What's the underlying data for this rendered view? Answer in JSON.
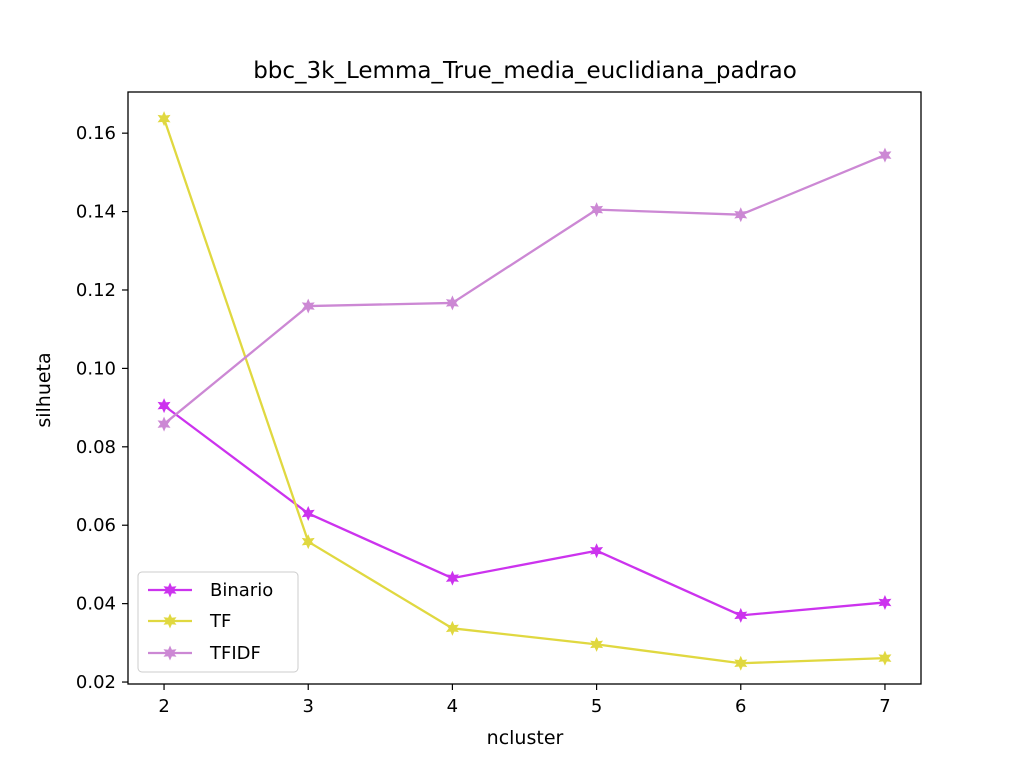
{
  "chart_data": {
    "type": "line",
    "title": "bbc_3k_Lemma_True_media_euclidiana_padrao",
    "xlabel": "ncluster",
    "ylabel": "silhueta",
    "x": [
      2,
      3,
      4,
      5,
      6,
      7
    ],
    "xlim": [
      1.75,
      7.25
    ],
    "ylim": [
      0.0195,
      0.1705
    ],
    "yticks": [
      0.02,
      0.04,
      0.06,
      0.08,
      0.1,
      0.12,
      0.14,
      0.16
    ],
    "ytick_labels": [
      "0.02",
      "0.04",
      "0.06",
      "0.08",
      "0.10",
      "0.12",
      "0.14",
      "0.16"
    ],
    "xticks": [
      2,
      3,
      4,
      5,
      6,
      7
    ],
    "xtick_labels": [
      "2",
      "3",
      "4",
      "5",
      "6",
      "7"
    ],
    "grid": false,
    "legend_position": "lower-left",
    "marker": "star",
    "series": [
      {
        "name": "Binario",
        "color": "#cc33ee",
        "values": [
          0.0905,
          0.063,
          0.0465,
          0.0535,
          0.037,
          0.0403
        ]
      },
      {
        "name": "TF",
        "color": "#e0d840",
        "values": [
          0.1637,
          0.0558,
          0.0337,
          0.0296,
          0.0248,
          0.0261
        ]
      },
      {
        "name": "TFIDF",
        "color": "#cc88d4",
        "values": [
          0.0858,
          0.1159,
          0.1167,
          0.1405,
          0.1392,
          0.1544
        ]
      }
    ]
  }
}
